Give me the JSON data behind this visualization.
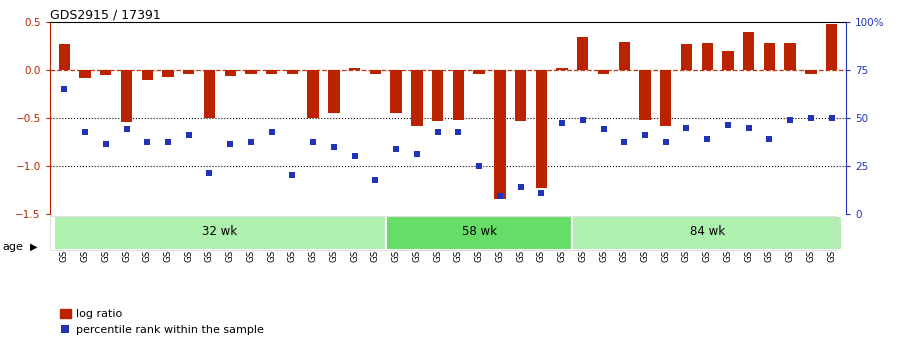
{
  "title": "GDS2915 / 17391",
  "samples": [
    "GSM97277",
    "GSM97278",
    "GSM97279",
    "GSM97280",
    "GSM97281",
    "GSM97282",
    "GSM97283",
    "GSM97284",
    "GSM97285",
    "GSM97286",
    "GSM97287",
    "GSM97288",
    "GSM97289",
    "GSM97290",
    "GSM97291",
    "GSM97292",
    "GSM97293",
    "GSM97294",
    "GSM97295",
    "GSM97296",
    "GSM97297",
    "GSM97298",
    "GSM97299",
    "GSM97300",
    "GSM97301",
    "GSM97302",
    "GSM97303",
    "GSM97304",
    "GSM97305",
    "GSM97306",
    "GSM97307",
    "GSM97308",
    "GSM97309",
    "GSM97310",
    "GSM97311",
    "GSM97312",
    "GSM97313",
    "GSM97314"
  ],
  "log_ratio": [
    0.27,
    -0.08,
    -0.05,
    -0.54,
    -0.1,
    -0.07,
    -0.04,
    -0.5,
    -0.06,
    -0.04,
    -0.04,
    -0.04,
    -0.5,
    -0.45,
    0.02,
    -0.04,
    -0.45,
    -0.58,
    -0.53,
    -0.52,
    -0.04,
    -1.35,
    -0.53,
    -1.23,
    0.02,
    0.35,
    -0.04,
    0.3,
    -0.52,
    -0.58,
    0.27,
    0.28,
    0.2,
    0.4,
    0.28,
    0.28,
    -0.04,
    0.48
  ],
  "pct_left": [
    -0.2,
    -0.65,
    -0.77,
    -0.62,
    -0.75,
    -0.75,
    -0.68,
    -1.08,
    -0.77,
    -0.75,
    -0.65,
    -1.1,
    -0.75,
    -0.8,
    -0.9,
    -1.15,
    -0.82,
    -0.88,
    -0.65,
    -0.65,
    -1.0,
    -1.32,
    -1.22,
    -1.28,
    -0.55,
    -0.52,
    -0.62,
    -0.75,
    -0.68,
    -0.75,
    -0.6,
    -0.72,
    -0.57,
    -0.6,
    -0.72,
    -0.52,
    -0.5,
    -0.5
  ],
  "groups": [
    {
      "label": "32 wk",
      "start": 0,
      "end": 16,
      "color": "#aef0ae"
    },
    {
      "label": "58 wk",
      "start": 16,
      "end": 25,
      "color": "#66dd66"
    },
    {
      "label": "84 wk",
      "start": 25,
      "end": 38,
      "color": "#aef0ae"
    }
  ],
  "bar_color": "#bb2200",
  "dot_color": "#2233bb",
  "ylim": [
    -1.5,
    0.5
  ],
  "yticks_left": [
    -1.5,
    -1.0,
    -0.5,
    0.0,
    0.5
  ],
  "yticks_right_vals": [
    0,
    25,
    50,
    75,
    100
  ],
  "yticks_right_labels": [
    "0",
    "25",
    "50",
    "75",
    "100%"
  ],
  "hlines": [
    -1.0,
    -0.5
  ]
}
